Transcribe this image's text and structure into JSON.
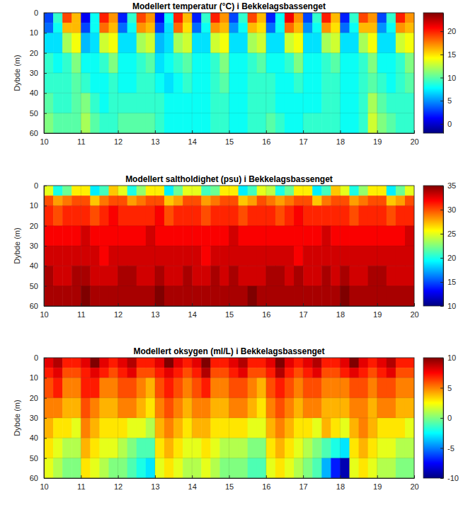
{
  "chart_data": [
    {
      "type": "heatmap",
      "title": "Modellert temperatur (°C) i Bekkelagsbassenget",
      "ylabel": "Dybde (m)",
      "x_edges": [
        10,
        10.25,
        10.5,
        10.75,
        11,
        11.25,
        11.5,
        11.75,
        12,
        12.25,
        12.5,
        12.75,
        13,
        13.25,
        13.5,
        13.75,
        14,
        14.25,
        14.5,
        14.75,
        15,
        15.25,
        15.5,
        15.75,
        16,
        16.25,
        16.5,
        16.75,
        17,
        17.25,
        17.5,
        17.75,
        18,
        18.25,
        18.5,
        18.75,
        19,
        19.25,
        19.5,
        19.75,
        20
      ],
      "y_edges": [
        0,
        5,
        10,
        20,
        30,
        40,
        50,
        60
      ],
      "values": [
        [
          3,
          9,
          19,
          16,
          1,
          8,
          20,
          17,
          2,
          9,
          19,
          17,
          1,
          8,
          20,
          16,
          2,
          9,
          20,
          17,
          3,
          9,
          19,
          16,
          2,
          8,
          21,
          17,
          3,
          9,
          20,
          16,
          2,
          9,
          19,
          17,
          3,
          9,
          20,
          17
        ],
        [
          4,
          8,
          16,
          16,
          3,
          8,
          18,
          16,
          4,
          8,
          17,
          16,
          3,
          7,
          18,
          15,
          4,
          8,
          17,
          16,
          5,
          8,
          16,
          15,
          4,
          8,
          18,
          16,
          5,
          8,
          17,
          15,
          4,
          8,
          16,
          16,
          5,
          8,
          17,
          16
        ],
        [
          7,
          7,
          12,
          14,
          6,
          7,
          13,
          14,
          7,
          7,
          12,
          13,
          6,
          7,
          12,
          13,
          7,
          7,
          13,
          14,
          7,
          7,
          12,
          13,
          7,
          7,
          13,
          14,
          7,
          7,
          12,
          13,
          7,
          7,
          12,
          14,
          7,
          7,
          13,
          14
        ],
        [
          9,
          8,
          9,
          11,
          8,
          8,
          9,
          11,
          8,
          8,
          9,
          10,
          7,
          8,
          9,
          10,
          8,
          8,
          9,
          11,
          8,
          8,
          9,
          10,
          8,
          8,
          9,
          11,
          8,
          8,
          9,
          10,
          8,
          8,
          9,
          11,
          8,
          8,
          9,
          11
        ],
        [
          9,
          9,
          9,
          10,
          9,
          8,
          8,
          9,
          8,
          8,
          9,
          9,
          8,
          7,
          8,
          9,
          8,
          8,
          9,
          10,
          8,
          8,
          9,
          9,
          9,
          8,
          8,
          9,
          8,
          8,
          9,
          9,
          8,
          8,
          9,
          10,
          9,
          8,
          9,
          10
        ],
        [
          10,
          9,
          9,
          10,
          11,
          9,
          8,
          9,
          9,
          9,
          9,
          9,
          9,
          8,
          8,
          8,
          8,
          8,
          9,
          9,
          8,
          8,
          9,
          9,
          9,
          8,
          8,
          8,
          8,
          8,
          9,
          9,
          8,
          8,
          9,
          12,
          10,
          9,
          9,
          9
        ],
        [
          11,
          10,
          10,
          10,
          12,
          10,
          9,
          9,
          10,
          10,
          10,
          10,
          9,
          8,
          8,
          8,
          8,
          8,
          9,
          9,
          8,
          8,
          9,
          9,
          10,
          9,
          8,
          8,
          9,
          9,
          9,
          9,
          8,
          8,
          9,
          13,
          11,
          10,
          9,
          9
        ]
      ],
      "xlim": [
        10,
        20
      ],
      "xticks": [
        10,
        11,
        12,
        13,
        14,
        15,
        16,
        17,
        18,
        19,
        20
      ],
      "ylim": [
        0,
        60
      ],
      "yticks": [
        0,
        10,
        20,
        30,
        40,
        50,
        60
      ],
      "colorbar": {
        "range": [
          -2,
          24
        ],
        "ticks": [
          0,
          5,
          10,
          15,
          20
        ]
      },
      "grid": true
    },
    {
      "type": "heatmap",
      "title": "Modellert saltholdighet (psu) i Bekkelagsbassenget",
      "ylabel": "Dybde (m)",
      "x_edges": [
        10,
        10.25,
        10.5,
        10.75,
        11,
        11.25,
        11.5,
        11.75,
        12,
        12.25,
        12.5,
        12.75,
        13,
        13.25,
        13.5,
        13.75,
        14,
        14.25,
        14.5,
        14.75,
        15,
        15.25,
        15.5,
        15.75,
        16,
        16.25,
        16.5,
        16.75,
        17,
        17.25,
        17.5,
        17.75,
        18,
        18.25,
        18.5,
        18.75,
        19,
        19.25,
        19.5,
        19.75,
        20
      ],
      "y_edges": [
        0,
        5,
        10,
        20,
        30,
        40,
        50,
        60
      ],
      "values": [
        [
          25,
          20,
          22,
          26,
          26,
          19,
          21,
          27,
          25,
          20,
          23,
          26,
          26,
          19,
          22,
          25,
          25,
          21,
          22,
          26,
          26,
          19,
          21,
          25,
          24,
          20,
          22,
          26,
          26,
          19,
          21,
          27,
          25,
          20,
          23,
          26,
          26,
          19,
          22,
          25
        ],
        [
          30,
          28,
          29,
          30,
          30,
          27,
          29,
          30,
          30,
          28,
          29,
          30,
          30,
          27,
          28,
          30,
          30,
          28,
          29,
          30,
          30,
          27,
          28,
          30,
          29,
          28,
          29,
          30,
          30,
          27,
          29,
          30,
          30,
          28,
          29,
          30,
          30,
          27,
          28,
          30
        ],
        [
          31,
          30,
          31,
          31,
          31,
          30,
          31,
          32,
          31,
          31,
          31,
          31,
          32,
          30,
          31,
          31,
          31,
          30,
          31,
          31,
          31,
          30,
          31,
          31,
          31,
          30,
          31,
          32,
          31,
          31,
          31,
          31,
          31,
          30,
          31,
          31,
          31,
          30,
          31,
          31
        ],
        [
          32,
          32,
          32,
          32,
          33,
          32,
          32,
          32,
          32,
          32,
          32,
          33,
          32,
          32,
          32,
          32,
          32,
          32,
          32,
          32,
          33,
          32,
          32,
          32,
          32,
          32,
          32,
          32,
          32,
          32,
          33,
          32,
          32,
          32,
          32,
          32,
          32,
          32,
          32,
          33
        ],
        [
          33,
          33,
          33,
          33,
          33,
          33,
          32,
          33,
          33,
          33,
          33,
          33,
          33,
          33,
          33,
          33,
          33,
          32,
          33,
          33,
          33,
          33,
          33,
          33,
          33,
          33,
          33,
          32,
          33,
          33,
          33,
          33,
          33,
          33,
          33,
          33,
          33,
          33,
          33,
          33
        ],
        [
          34,
          33,
          33,
          34,
          34,
          33,
          33,
          33,
          34,
          34,
          33,
          33,
          34,
          33,
          33,
          34,
          33,
          33,
          34,
          33,
          34,
          33,
          33,
          33,
          34,
          34,
          33,
          34,
          33,
          33,
          34,
          33,
          34,
          33,
          33,
          34,
          34,
          33,
          33,
          33
        ],
        [
          34,
          34,
          34,
          34,
          35,
          34,
          34,
          34,
          34,
          34,
          34,
          34,
          35,
          34,
          34,
          34,
          34,
          34,
          34,
          34,
          34,
          34,
          35,
          34,
          34,
          34,
          34,
          34,
          34,
          34,
          34,
          34,
          35,
          34,
          34,
          34,
          34,
          34,
          34,
          34
        ]
      ],
      "xlim": [
        10,
        20
      ],
      "xticks": [
        10,
        11,
        12,
        13,
        14,
        15,
        16,
        17,
        18,
        19,
        20
      ],
      "ylim": [
        0,
        60
      ],
      "yticks": [
        0,
        10,
        20,
        30,
        40,
        50,
        60
      ],
      "colorbar": {
        "range": [
          10,
          35
        ],
        "ticks": [
          10,
          15,
          20,
          25,
          30,
          35
        ]
      },
      "grid": true
    },
    {
      "type": "heatmap",
      "title": "Modellert oksygen (ml/L) i Bekkelagsbassenget",
      "ylabel": "Dybde (m)",
      "x_edges": [
        10,
        10.25,
        10.5,
        10.75,
        11,
        11.25,
        11.5,
        11.75,
        12,
        12.25,
        12.5,
        12.75,
        13,
        13.25,
        13.5,
        13.75,
        14,
        14.25,
        14.5,
        14.75,
        15,
        15.25,
        15.5,
        15.75,
        16,
        16.25,
        16.5,
        16.75,
        17,
        17.25,
        17.5,
        17.75,
        18,
        18.25,
        18.5,
        18.75,
        19,
        19.25,
        19.5,
        19.75,
        20
      ],
      "y_edges": [
        0,
        5,
        10,
        20,
        30,
        40,
        50,
        60
      ],
      "values": [
        [
          8,
          9,
          7,
          7,
          8,
          10,
          8,
          7,
          8,
          9,
          7,
          7,
          8,
          10,
          8,
          7,
          8,
          10,
          7,
          7,
          8,
          9,
          7,
          7,
          8,
          10,
          8,
          7,
          8,
          9,
          7,
          7,
          8,
          10,
          8,
          7,
          8,
          9,
          7,
          7
        ],
        [
          7,
          8,
          6,
          6,
          7,
          8,
          7,
          6,
          7,
          8,
          6,
          6,
          7,
          8,
          7,
          6,
          7,
          9,
          6,
          6,
          7,
          8,
          6,
          6,
          7,
          9,
          7,
          6,
          7,
          8,
          6,
          6,
          7,
          8,
          7,
          6,
          7,
          8,
          6,
          6
        ],
        [
          6,
          7,
          5,
          5,
          7,
          7,
          5,
          5,
          6,
          6,
          5,
          4,
          6,
          7,
          6,
          5,
          6,
          7,
          5,
          5,
          6,
          6,
          5,
          4,
          6,
          7,
          6,
          5,
          6,
          6,
          5,
          5,
          5,
          6,
          6,
          5,
          6,
          6,
          5,
          5
        ],
        [
          5,
          5,
          4,
          4,
          6,
          5,
          4,
          4,
          5,
          5,
          4,
          3,
          5,
          6,
          5,
          4,
          5,
          5,
          4,
          4,
          5,
          5,
          4,
          3,
          5,
          6,
          5,
          4,
          5,
          5,
          4,
          4,
          4,
          5,
          5,
          4,
          5,
          5,
          4,
          4
        ],
        [
          4,
          3,
          3,
          2,
          5,
          4,
          3,
          3,
          3,
          2,
          2,
          1,
          4,
          5,
          4,
          3,
          4,
          4,
          3,
          3,
          3,
          3,
          2,
          2,
          4,
          5,
          4,
          3,
          3,
          2,
          4,
          3,
          2,
          4,
          5,
          4,
          3,
          3,
          3,
          2
        ],
        [
          3,
          2,
          1,
          1,
          4,
          3,
          2,
          2,
          1,
          0,
          -1,
          -1,
          3,
          4,
          3,
          2,
          2,
          3,
          2,
          1,
          1,
          1,
          0,
          0,
          3,
          4,
          3,
          2,
          1,
          0,
          -1,
          -2,
          -3,
          3,
          4,
          3,
          2,
          2,
          1,
          1
        ],
        [
          2,
          1,
          0,
          0,
          3,
          2,
          1,
          0,
          0,
          -1,
          -2,
          -3,
          2,
          3,
          2,
          1,
          1,
          2,
          1,
          0,
          0,
          0,
          -1,
          -1,
          2,
          3,
          2,
          1,
          0,
          -1,
          -4,
          -7,
          -9,
          2,
          3,
          2,
          1,
          1,
          0,
          0
        ]
      ],
      "xlim": [
        10,
        20
      ],
      "xticks": [
        10,
        11,
        12,
        13,
        14,
        15,
        16,
        17,
        18,
        19,
        20
      ],
      "ylim": [
        0,
        60
      ],
      "yticks": [
        0,
        10,
        20,
        30,
        40,
        50,
        60
      ],
      "colorbar": {
        "range": [
          -10,
          10
        ],
        "ticks": [
          -10,
          -5,
          0,
          5,
          10
        ]
      },
      "grid": true
    }
  ]
}
